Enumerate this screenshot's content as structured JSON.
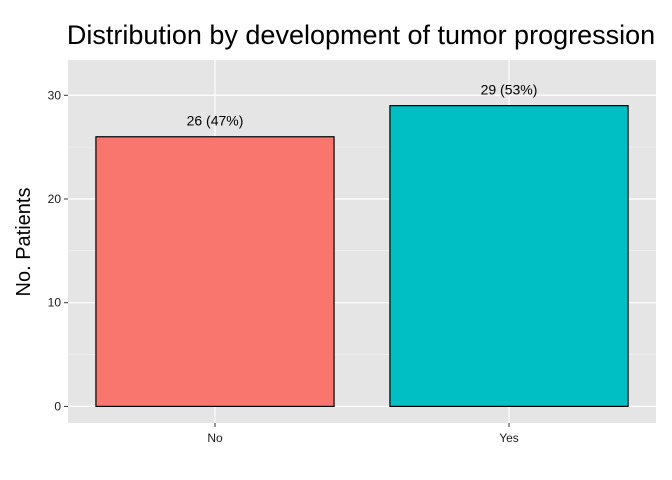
{
  "chart_data": {
    "type": "bar",
    "title": "Distribution by development of tumor progression",
    "xlabel": "",
    "ylabel": "No. Patients",
    "categories": [
      "No",
      "Yes"
    ],
    "values": [
      26,
      29
    ],
    "data_labels": [
      "26 (47%)",
      "29 (53%)"
    ],
    "colors": [
      "#F8766D",
      "#00BFC4"
    ],
    "ylim": [
      -1.6,
      33.4
    ],
    "yticks": [
      0,
      10,
      20,
      30
    ],
    "grid": true,
    "legend": "none",
    "panel_background": "#E5E5E5"
  }
}
